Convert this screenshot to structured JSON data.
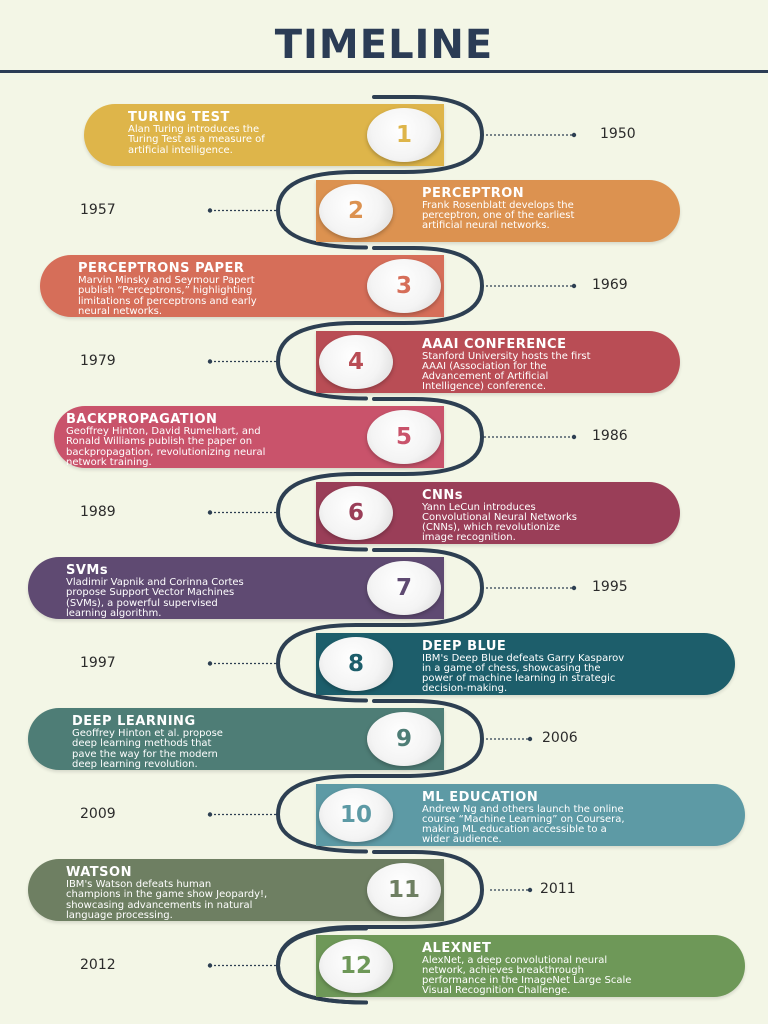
{
  "title": "TIMELINE",
  "events": [
    {
      "num": "1",
      "title": "TURING TEST",
      "desc": "Alan Turing introduces the\nTuring Test as a measure of\nartificial intelligence.",
      "year": "1950",
      "color": "#deb54a"
    },
    {
      "num": "2",
      "title": "PERCEPTRON",
      "desc": " Frank Rosenblatt develops the\nperceptron, one of the earliest\nartificial neural networks.",
      "year": "1957",
      "color": "#dc9250"
    },
    {
      "num": "3",
      "title": "PERCEPTRONS PAPER",
      "desc": "Marvin Minsky and Seymour Papert\npublish “Perceptrons,” highlighting\nlimitations of perceptrons and early\nneural networks.",
      "year": "1969",
      "color": "#d66e59"
    },
    {
      "num": "4",
      "title": "AAAI CONFERENCE",
      "desc": " Stanford University hosts the first\nAAAI (Association for the\nAdvancement of Artificial\nIntelligence) conference.",
      "year": "1979",
      "color": "#b94d55"
    },
    {
      "num": "5",
      "title": "BACKPROPAGATION",
      "desc": "Geoffrey Hinton, David Rumelhart, and\nRonald Williams publish the paper on\nbackpropagation, revolutionizing neural\nnetwork training.",
      "year": "1986",
      "color": "#c9536b"
    },
    {
      "num": "6",
      "title": "CNNs",
      "desc": "Yann LeCun introduces\nConvolutional Neural Networks\n(CNNs), which revolutionize\nimage recognition.",
      "year": "1989",
      "color": "#9a3e58"
    },
    {
      "num": "7",
      "title": "SVMs",
      "desc": "Vladimir Vapnik and Corinna Cortes\npropose Support Vector Machines\n(SVMs), a powerful supervised\nlearning algorithm.",
      "year": "1995",
      "color": "#5f4a72"
    },
    {
      "num": "8",
      "title": "DEEP BLUE",
      "desc": "IBM's Deep Blue defeats Garry Kasparov\nin a game of chess, showcasing the\npower of machine learning in strategic\ndecision-making.",
      "year": "1997",
      "color": "#1d5e6b"
    },
    {
      "num": "9",
      "title": "DEEP LEARNING",
      "desc": "Geoffrey Hinton et al. propose\ndeep learning methods that\npave the way for the modern\ndeep learning revolution.",
      "year": "2006",
      "color": "#4e7d76"
    },
    {
      "num": "10",
      "title": "ML EDUCATION",
      "desc": "Andrew Ng and others launch the online\ncourse “Machine Learning” on Coursera,\nmaking ML education accessible to a\nwider audience.",
      "year": "2009",
      "color": "#5d9aa5"
    },
    {
      "num": "11",
      "title": "WATSON",
      "desc": "IBM's Watson defeats human\nchampions in the game show Jeopardy!,\nshowcasing advancements in natural\nlanguage processing.",
      "year": "2011",
      "color": "#6e7f62"
    },
    {
      "num": "12",
      "title": "ALEXNET",
      "desc": "AlexNet, a deep convolutional neural\nnetwork, achieves breakthrough\nperformance in the ImageNet Large Scale\nVisual Recognition Challenge.",
      "year": "2012",
      "color": "#6e9858"
    }
  ],
  "colors": {
    "background": "#f3f6e6",
    "heading": "#2b3c55",
    "connector": "#2d3f52",
    "year_text": "#2b2b2b"
  }
}
